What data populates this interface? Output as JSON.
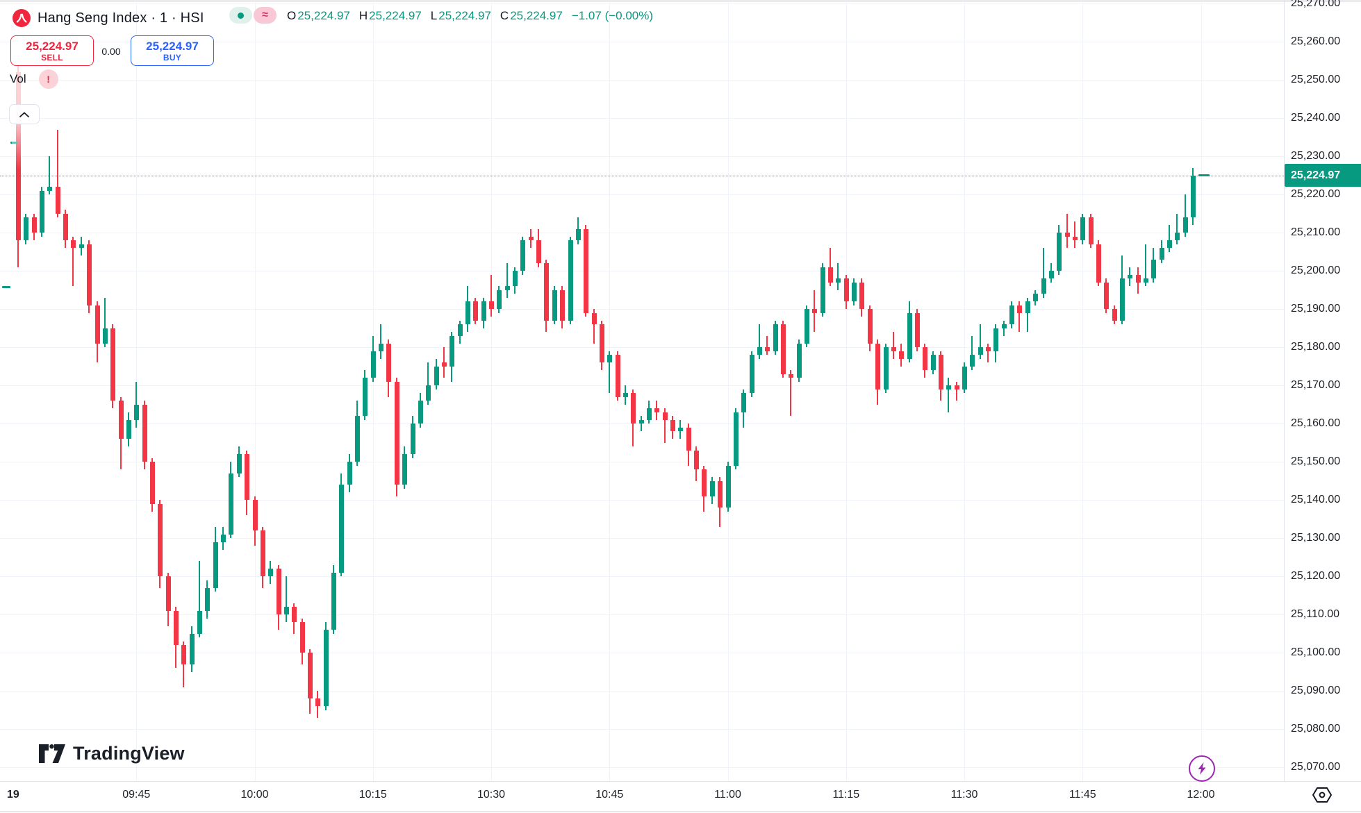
{
  "header": {
    "symbol_title": "Hang Seng Index · 1 · HSI",
    "status_pills": {
      "delayed_approx": "≈"
    },
    "ohlc": {
      "open_label": "O",
      "open": "25,224.97",
      "high_label": "H",
      "high": "25,224.97",
      "low_label": "L",
      "low": "25,224.97",
      "close_label": "C",
      "close": "25,224.97",
      "change": "−1.07 (−0.00%)"
    }
  },
  "order_panel": {
    "sell_price": "25,224.97",
    "sell_label": "SELL",
    "spread": "0.00",
    "buy_price": "25,224.97",
    "buy_label": "BUY"
  },
  "legend": {
    "indicator_label": "Vol",
    "warning_badge": "!"
  },
  "price_axis": {
    "last_price_label": "25,224.97",
    "labels": [
      "25,270.00",
      "25,260.00",
      "25,250.00",
      "25,240.00",
      "25,230.00",
      "25,220.00",
      "25,210.00",
      "25,200.00",
      "25,190.00",
      "25,180.00",
      "25,170.00",
      "25,160.00",
      "25,150.00",
      "25,140.00",
      "25,130.00",
      "25,120.00",
      "25,110.00",
      "25,100.00",
      "25,090.00",
      "25,080.00",
      "25,070.00"
    ]
  },
  "time_axis": {
    "labels": [
      "19",
      "09:45",
      "10:00",
      "10:15",
      "10:30",
      "10:45",
      "11:00",
      "11:15",
      "11:30",
      "11:45",
      "12:00"
    ]
  },
  "footer": {
    "brand": "TradingView"
  },
  "colors": {
    "up": "#089981",
    "down": "#F23645",
    "buy_blue": "#2962FF",
    "sell_red": "#f0263f",
    "purple": "#9C27B0",
    "grid": "#f0f3fa",
    "text": "#131722"
  },
  "chart_data": {
    "type": "candlestick",
    "symbol": "HSI",
    "title": "Hang Seng Index",
    "interval": "1 minute",
    "session_start": "09:30",
    "session_end": "12:00",
    "current_price": 25224.97,
    "price_axis_range": [
      25063,
      25271
    ],
    "time_ticks": [
      "19",
      "09:45",
      "10:00",
      "10:15",
      "10:30",
      "10:45",
      "11:00",
      "11:15",
      "11:30",
      "11:45",
      "12:00"
    ],
    "ohlc_format": "[open, high, low, close]",
    "candles": [
      [
        25252,
        25254,
        25201,
        25208
      ],
      [
        25208,
        25215,
        25207,
        25214
      ],
      [
        25214,
        25215,
        25208,
        25210
      ],
      [
        25210,
        25222,
        25209,
        25221
      ],
      [
        25221,
        25230,
        25220,
        25222
      ],
      [
        25222,
        25237,
        25214,
        25215
      ],
      [
        25215,
        25216,
        25206,
        25208
      ],
      [
        25208,
        25209,
        25196,
        25206
      ],
      [
        25206,
        25209,
        25204,
        25207
      ],
      [
        25207,
        25208,
        25189,
        25191
      ],
      [
        25191,
        25192,
        25176,
        25181
      ],
      [
        25181,
        25193,
        25180,
        25185
      ],
      [
        25185,
        25186,
        25164,
        25166
      ],
      [
        25166,
        25167,
        25148,
        25156
      ],
      [
        25156,
        25163,
        25154,
        25161
      ],
      [
        25161,
        25171,
        25159,
        25165
      ],
      [
        25165,
        25166,
        25148,
        25150
      ],
      [
        25150,
        25151,
        25137,
        25139
      ],
      [
        25139,
        25140,
        25117,
        25120
      ],
      [
        25120,
        25121,
        25107,
        25111
      ],
      [
        25111,
        25112,
        25096,
        25102
      ],
      [
        25102,
        25103,
        25091,
        25097
      ],
      [
        25097,
        25107,
        25095,
        25105
      ],
      [
        25105,
        25124,
        25104,
        25111
      ],
      [
        25111,
        25119,
        25109,
        25117
      ],
      [
        25117,
        25133,
        25116,
        25129
      ],
      [
        25129,
        25133,
        25127,
        25131
      ],
      [
        25131,
        25150,
        25130,
        25147
      ],
      [
        25147,
        25154,
        25146,
        25152
      ],
      [
        25152,
        25153,
        25136,
        25140
      ],
      [
        25140,
        25141,
        25128,
        25132
      ],
      [
        25132,
        25133,
        25117,
        25120
      ],
      [
        25120,
        25124,
        25118,
        25122
      ],
      [
        25122,
        25123,
        25106,
        25110
      ],
      [
        25110,
        25120,
        25108,
        25112
      ],
      [
        25112,
        25113,
        25105,
        25108
      ],
      [
        25108,
        25109,
        25097,
        25100
      ],
      [
        25100,
        25101,
        25084,
        25088
      ],
      [
        25088,
        25090,
        25083,
        25086
      ],
      [
        25086,
        25108,
        25085,
        25106
      ],
      [
        25106,
        25123,
        25105,
        25121
      ],
      [
        25121,
        25147,
        25120,
        25144
      ],
      [
        25144,
        25152,
        25142,
        25150
      ],
      [
        25150,
        25166,
        25149,
        25162
      ],
      [
        25162,
        25174,
        25161,
        25172
      ],
      [
        25172,
        25183,
        25171,
        25179
      ],
      [
        25179,
        25186,
        25177,
        25181
      ],
      [
        25181,
        25182,
        25167,
        25171
      ],
      [
        25171,
        25172,
        25141,
        25144
      ],
      [
        25144,
        25154,
        25143,
        25152
      ],
      [
        25152,
        25162,
        25151,
        25160
      ],
      [
        25160,
        25168,
        25159,
        25166
      ],
      [
        25166,
        25176,
        25165,
        25170
      ],
      [
        25170,
        25177,
        25169,
        25175
      ],
      [
        25176,
        25180,
        25172,
        25175
      ],
      [
        25175,
        25184,
        25171,
        25183
      ],
      [
        25183,
        25187,
        25181,
        25186
      ],
      [
        25186,
        25196,
        25184,
        25192
      ],
      [
        25192,
        25193,
        25186,
        25187
      ],
      [
        25187,
        25193,
        25185,
        25192
      ],
      [
        25192,
        25199,
        25188,
        25190
      ],
      [
        25190,
        25196,
        25189,
        25195
      ],
      [
        25195,
        25202,
        25193,
        25196
      ],
      [
        25196,
        25201,
        25194,
        25200
      ],
      [
        25200,
        25209,
        25199,
        25208
      ],
      [
        25209,
        25211,
        25206,
        25208
      ],
      [
        25208,
        25211,
        25201,
        25202
      ],
      [
        25202,
        25203,
        25184,
        25187
      ],
      [
        25187,
        25196,
        25186,
        25195
      ],
      [
        25195,
        25196,
        25185,
        25187
      ],
      [
        25187,
        25209,
        25186,
        25208
      ],
      [
        25208,
        25214,
        25207,
        25211
      ],
      [
        25211,
        25212,
        25188,
        25189
      ],
      [
        25189,
        25190,
        25181,
        25186
      ],
      [
        25186,
        25187,
        25174,
        25176
      ],
      [
        25176,
        25179,
        25168,
        25178
      ],
      [
        25178,
        25179,
        25166,
        25167
      ],
      [
        25167,
        25170,
        25165,
        25168
      ],
      [
        25168,
        25169,
        25154,
        25160
      ],
      [
        25160,
        25162,
        25158,
        25161
      ],
      [
        25161,
        25166,
        25160,
        25164
      ],
      [
        25164,
        25166,
        25161,
        25163
      ],
      [
        25163,
        25164,
        25155,
        25161
      ],
      [
        25161,
        25162,
        25156,
        25158
      ],
      [
        25158,
        25161,
        25156,
        25159
      ],
      [
        25159,
        25160,
        25149,
        25153
      ],
      [
        25153,
        25154,
        25145,
        25148
      ],
      [
        25148,
        25149,
        25137,
        25141
      ],
      [
        25141,
        25146,
        25139,
        25145
      ],
      [
        25145,
        25146,
        25133,
        25138
      ],
      [
        25138,
        25150,
        25137,
        25149
      ],
      [
        25149,
        25164,
        25148,
        25163
      ],
      [
        25163,
        25169,
        25159,
        25168
      ],
      [
        25168,
        25179,
        25167,
        25178
      ],
      [
        25178,
        25186,
        25177,
        25180
      ],
      [
        25180,
        25183,
        25178,
        25179
      ],
      [
        25179,
        25187,
        25178,
        25186
      ],
      [
        25186,
        25187,
        25172,
        25173
      ],
      [
        25173,
        25174,
        25162,
        25172
      ],
      [
        25172,
        25182,
        25171,
        25181
      ],
      [
        25181,
        25191,
        25180,
        25190
      ],
      [
        25190,
        25195,
        25184,
        25189
      ],
      [
        25189,
        25202,
        25188,
        25201
      ],
      [
        25201,
        25206,
        25196,
        25197
      ],
      [
        25197,
        25202,
        25195,
        25198
      ],
      [
        25198,
        25199,
        25190,
        25192
      ],
      [
        25192,
        25198,
        25191,
        25197
      ],
      [
        25197,
        25198,
        25188,
        25190
      ],
      [
        25190,
        25191,
        25179,
        25181
      ],
      [
        25181,
        25182,
        25165,
        25169
      ],
      [
        25169,
        25181,
        25168,
        25180
      ],
      [
        25180,
        25184,
        25177,
        25179
      ],
      [
        25179,
        25181,
        25175,
        25177
      ],
      [
        25177,
        25192,
        25176,
        25189
      ],
      [
        25189,
        25190,
        25179,
        25180
      ],
      [
        25180,
        25181,
        25172,
        25174
      ],
      [
        25174,
        25179,
        25173,
        25178
      ],
      [
        25178,
        25179,
        25166,
        25169
      ],
      [
        25169,
        25172,
        25163,
        25170
      ],
      [
        25170,
        25171,
        25166,
        25169
      ],
      [
        25169,
        25176,
        25168,
        25175
      ],
      [
        25175,
        25183,
        25174,
        25178
      ],
      [
        25178,
        25186,
        25177,
        25180
      ],
      [
        25180,
        25181,
        25176,
        25179
      ],
      [
        25179,
        25186,
        25176,
        25185
      ],
      [
        25185,
        25187,
        25183,
        25186
      ],
      [
        25186,
        25192,
        25185,
        25191
      ],
      [
        25191,
        25192,
        25184,
        25189
      ],
      [
        25189,
        25193,
        25184,
        25192
      ],
      [
        25192,
        25195,
        25191,
        25194
      ],
      [
        25194,
        25206,
        25193,
        25198
      ],
      [
        25198,
        25202,
        25197,
        25200
      ],
      [
        25200,
        25212,
        25199,
        25210
      ],
      [
        25210,
        25215,
        25206,
        25209
      ],
      [
        25209,
        25213,
        25206,
        25208
      ],
      [
        25208,
        25215,
        25207,
        25214
      ],
      [
        25214,
        25215,
        25206,
        25207
      ],
      [
        25207,
        25208,
        25196,
        25197
      ],
      [
        25197,
        25198,
        25189,
        25190
      ],
      [
        25190,
        25191,
        25186,
        25187
      ],
      [
        25187,
        25204,
        25186,
        25198
      ],
      [
        25198,
        25201,
        25196,
        25199
      ],
      [
        25199,
        25201,
        25194,
        25197
      ],
      [
        25197,
        25207,
        25196,
        25198
      ],
      [
        25198,
        25206,
        25197,
        25203
      ],
      [
        25203,
        25208,
        25202,
        25206
      ],
      [
        25206,
        25212,
        25205,
        25208
      ],
      [
        25208,
        25215,
        25207,
        25210
      ],
      [
        25210,
        25220,
        25209,
        25214
      ],
      [
        25214,
        25227,
        25212,
        25224.97
      ]
    ]
  }
}
